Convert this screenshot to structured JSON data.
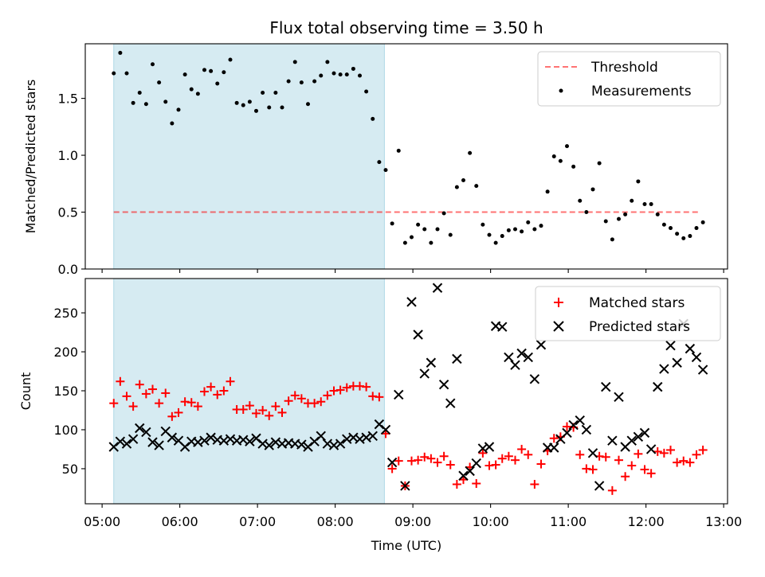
{
  "figure_title": "Flux total observing time = 3.50 h",
  "colors": {
    "shade": "#add8e6",
    "threshold": "#ff0000",
    "measurement": "#000000",
    "matched": "#ff0000",
    "predicted": "#000000"
  },
  "chart_data": [
    {
      "type": "scatter",
      "title": "Flux total observing time = 3.50 h",
      "xlabel": "",
      "ylabel": "Matched/Predicted stars",
      "xlim": [
        "04:47",
        "13:03"
      ],
      "ylim": [
        0,
        1.98
      ],
      "xticks": [
        "05:00",
        "06:00",
        "07:00",
        "08:00",
        "09:00",
        "10:00",
        "11:00",
        "12:00",
        "13:00"
      ],
      "yticks": [
        0.0,
        0.5,
        1.0,
        1.5
      ],
      "ytick_labels": [
        "0.0",
        "0.5",
        "1.0",
        "1.5"
      ],
      "grid": false,
      "legend_position": "top-right",
      "shaded_span": [
        "05:09",
        "08:38"
      ],
      "threshold": {
        "name": "Threshold",
        "y": 0.5,
        "x_range": [
          "05:09",
          "12:41"
        ]
      },
      "series": [
        {
          "name": "Measurements",
          "marker": "dot",
          "x": [
            "05:09",
            "05:14",
            "05:19",
            "05:24",
            "05:29",
            "05:34",
            "05:39",
            "05:44",
            "05:49",
            "05:54",
            "05:59",
            "06:04",
            "06:09",
            "06:14",
            "06:19",
            "06:24",
            "06:29",
            "06:34",
            "06:39",
            "06:44",
            "06:49",
            "06:54",
            "06:59",
            "07:04",
            "07:09",
            "07:14",
            "07:19",
            "07:24",
            "07:29",
            "07:34",
            "07:39",
            "07:44",
            "07:49",
            "07:54",
            "07:59",
            "08:04",
            "08:09",
            "08:14",
            "08:19",
            "08:24",
            "08:29",
            "08:34",
            "08:39",
            "08:44",
            "08:49",
            "08:54",
            "08:59",
            "09:04",
            "09:09",
            "09:14",
            "09:19",
            "09:24",
            "09:29",
            "09:34",
            "09:39",
            "09:44",
            "09:49",
            "09:54",
            "09:59",
            "10:04",
            "10:09",
            "10:14",
            "10:19",
            "10:24",
            "10:29",
            "10:34",
            "10:39",
            "10:44",
            "10:49",
            "10:54",
            "10:59",
            "11:04",
            "11:09",
            "11:14",
            "11:19",
            "11:24",
            "11:29",
            "11:34",
            "11:39",
            "11:44",
            "11:49",
            "11:54",
            "11:59",
            "12:04",
            "12:09",
            "12:14",
            "12:19",
            "12:24",
            "12:29",
            "12:34",
            "12:39",
            "12:44"
          ],
          "y": [
            1.72,
            1.9,
            1.72,
            1.46,
            1.55,
            1.45,
            1.8,
            1.64,
            1.47,
            1.28,
            1.4,
            1.71,
            1.58,
            1.54,
            1.75,
            1.74,
            1.63,
            1.73,
            1.84,
            1.46,
            1.44,
            1.47,
            1.39,
            1.55,
            1.42,
            1.55,
            1.42,
            1.65,
            1.82,
            1.64,
            1.45,
            1.65,
            1.7,
            1.82,
            1.72,
            1.71,
            1.71,
            1.76,
            1.7,
            1.56,
            1.32,
            0.94,
            0.87,
            0.4,
            1.04,
            0.23,
            0.28,
            0.39,
            0.35,
            0.23,
            0.35,
            0.49,
            0.3,
            0.72,
            0.78,
            1.02,
            0.73,
            0.39,
            0.3,
            0.23,
            0.29,
            0.34,
            0.35,
            0.33,
            0.41,
            0.35,
            0.38,
            0.68,
            0.99,
            0.95,
            1.08,
            0.9,
            0.6,
            0.5,
            0.7,
            0.93,
            0.42,
            0.26,
            0.44,
            0.48,
            0.6,
            0.77,
            0.57,
            0.57,
            0.48,
            0.39,
            0.36,
            0.31,
            0.27,
            0.29,
            0.36,
            0.41
          ]
        }
      ]
    },
    {
      "type": "scatter",
      "xlabel": "Time (UTC)",
      "ylabel": "Count",
      "xlim": [
        "04:47",
        "13:03"
      ],
      "ylim": [
        5,
        294
      ],
      "xticks": [
        "05:00",
        "06:00",
        "07:00",
        "08:00",
        "09:00",
        "10:00",
        "11:00",
        "12:00",
        "13:00"
      ],
      "yticks": [
        50,
        100,
        150,
        200,
        250
      ],
      "grid": false,
      "legend_position": "top-right",
      "shaded_span": [
        "05:09",
        "08:38"
      ],
      "series": [
        {
          "name": "Matched stars",
          "marker": "plus",
          "x": [
            "05:09",
            "05:14",
            "05:19",
            "05:24",
            "05:29",
            "05:34",
            "05:39",
            "05:44",
            "05:49",
            "05:54",
            "05:59",
            "06:04",
            "06:09",
            "06:14",
            "06:19",
            "06:24",
            "06:29",
            "06:34",
            "06:39",
            "06:44",
            "06:49",
            "06:54",
            "06:59",
            "07:04",
            "07:09",
            "07:14",
            "07:19",
            "07:24",
            "07:29",
            "07:34",
            "07:39",
            "07:44",
            "07:49",
            "07:54",
            "07:59",
            "08:04",
            "08:09",
            "08:14",
            "08:19",
            "08:24",
            "08:29",
            "08:34",
            "08:39",
            "08:44",
            "08:49",
            "08:54",
            "08:59",
            "09:04",
            "09:09",
            "09:14",
            "09:19",
            "09:24",
            "09:29",
            "09:34",
            "09:39",
            "09:44",
            "09:49",
            "09:54",
            "09:59",
            "10:04",
            "10:09",
            "10:14",
            "10:19",
            "10:24",
            "10:29",
            "10:34",
            "10:39",
            "10:44",
            "10:49",
            "10:54",
            "10:59",
            "11:04",
            "11:09",
            "11:14",
            "11:19",
            "11:24",
            "11:29",
            "11:34",
            "11:39",
            "11:44",
            "11:49",
            "11:54",
            "11:59",
            "12:04",
            "12:09",
            "12:14",
            "12:19",
            "12:24",
            "12:29",
            "12:34",
            "12:39",
            "12:44"
          ],
          "y": [
            134,
            162,
            143,
            130,
            158,
            146,
            152,
            134,
            147,
            117,
            122,
            136,
            135,
            130,
            149,
            155,
            145,
            150,
            162,
            126,
            126,
            131,
            121,
            125,
            118,
            130,
            122,
            137,
            144,
            140,
            134,
            134,
            136,
            144,
            150,
            151,
            154,
            156,
            156,
            155,
            143,
            142,
            95,
            50,
            60,
            28,
            60,
            61,
            65,
            63,
            58,
            66,
            55,
            30,
            36,
            52,
            31,
            70,
            54,
            55,
            63,
            66,
            61,
            75,
            68,
            30,
            56,
            73,
            89,
            91,
            104,
            103,
            68,
            50,
            49,
            66,
            65,
            22,
            61,
            40,
            54,
            69,
            49,
            44,
            72,
            70,
            74,
            58,
            60,
            58,
            68,
            74
          ]
        },
        {
          "name": "Predicted stars",
          "marker": "x",
          "x": [
            "05:09",
            "05:14",
            "05:19",
            "05:24",
            "05:29",
            "05:34",
            "05:39",
            "05:44",
            "05:49",
            "05:54",
            "05:59",
            "06:04",
            "06:09",
            "06:14",
            "06:19",
            "06:24",
            "06:29",
            "06:34",
            "06:39",
            "06:44",
            "06:49",
            "06:54",
            "06:59",
            "07:04",
            "07:09",
            "07:14",
            "07:19",
            "07:24",
            "07:29",
            "07:34",
            "07:39",
            "07:44",
            "07:49",
            "07:54",
            "07:59",
            "08:04",
            "08:09",
            "08:14",
            "08:19",
            "08:24",
            "08:29",
            "08:34",
            "08:39",
            "08:44",
            "08:49",
            "08:54",
            "08:59",
            "09:04",
            "09:09",
            "09:14",
            "09:19",
            "09:24",
            "09:29",
            "09:34",
            "09:39",
            "09:44",
            "09:49",
            "09:54",
            "09:59",
            "10:04",
            "10:09",
            "10:14",
            "10:19",
            "10:24",
            "10:29",
            "10:34",
            "10:39",
            "10:44",
            "10:49",
            "10:54",
            "10:59",
            "11:04",
            "11:09",
            "11:14",
            "11:19",
            "11:24",
            "11:29",
            "11:34",
            "11:39",
            "11:44",
            "11:49",
            "11:54",
            "11:59",
            "12:04",
            "12:09",
            "12:14",
            "12:19",
            "12:24",
            "12:29",
            "12:34",
            "12:39",
            "12:44"
          ],
          "y": [
            78,
            85,
            82,
            88,
            102,
            97,
            84,
            80,
            98,
            90,
            86,
            78,
            85,
            84,
            86,
            90,
            87,
            86,
            88,
            86,
            87,
            85,
            89,
            82,
            80,
            84,
            82,
            83,
            82,
            81,
            78,
            85,
            92,
            82,
            80,
            82,
            88,
            90,
            88,
            90,
            92,
            107,
            100,
            58,
            145,
            28,
            264,
            222,
            172,
            186,
            282,
            158,
            134,
            191,
            41,
            47,
            57,
            76,
            78,
            233,
            232,
            193,
            183,
            198,
            193,
            165,
            209,
            77,
            77,
            88,
            96,
            106,
            112,
            100,
            70,
            28,
            155,
            86,
            142,
            78,
            86,
            91,
            96,
            75,
            155,
            178,
            208,
            186,
            236,
            204,
            193,
            177
          ]
        }
      ]
    }
  ]
}
